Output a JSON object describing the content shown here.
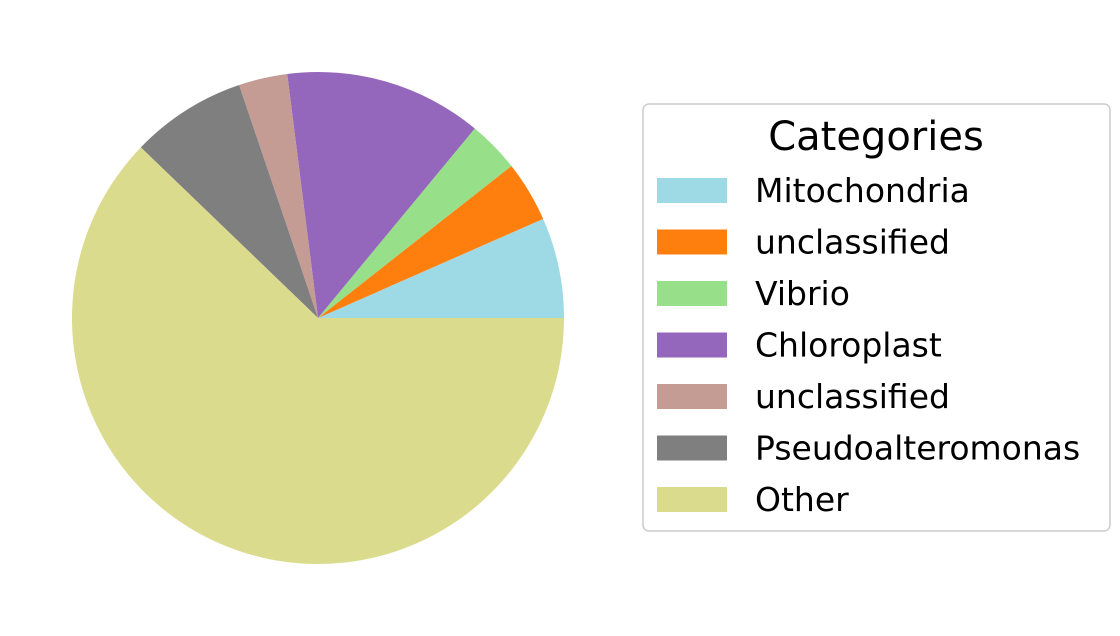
{
  "chart_data": {
    "type": "pie",
    "title": "",
    "start_angle_deg": 0,
    "direction": "counterclockwise",
    "legend": {
      "title": "Categories",
      "placement": "right"
    },
    "slices": [
      {
        "label": "Mitochondria",
        "value": 6.6,
        "color": "#9edae5"
      },
      {
        "label": "unclassified",
        "value": 4.0,
        "color": "#ff7f0e"
      },
      {
        "label": "Vibrio",
        "value": 3.4,
        "color": "#98df8a"
      },
      {
        "label": "Chloroplast",
        "value": 13.0,
        "color": "#9467bd"
      },
      {
        "label": "unclassified",
        "value": 3.2,
        "color": "#c49c94"
      },
      {
        "label": "Pseudoalteromonas",
        "value": 7.6,
        "color": "#7f7f7f"
      },
      {
        "label": "Other",
        "value": 62.2,
        "color": "#dbdb8d"
      }
    ]
  }
}
